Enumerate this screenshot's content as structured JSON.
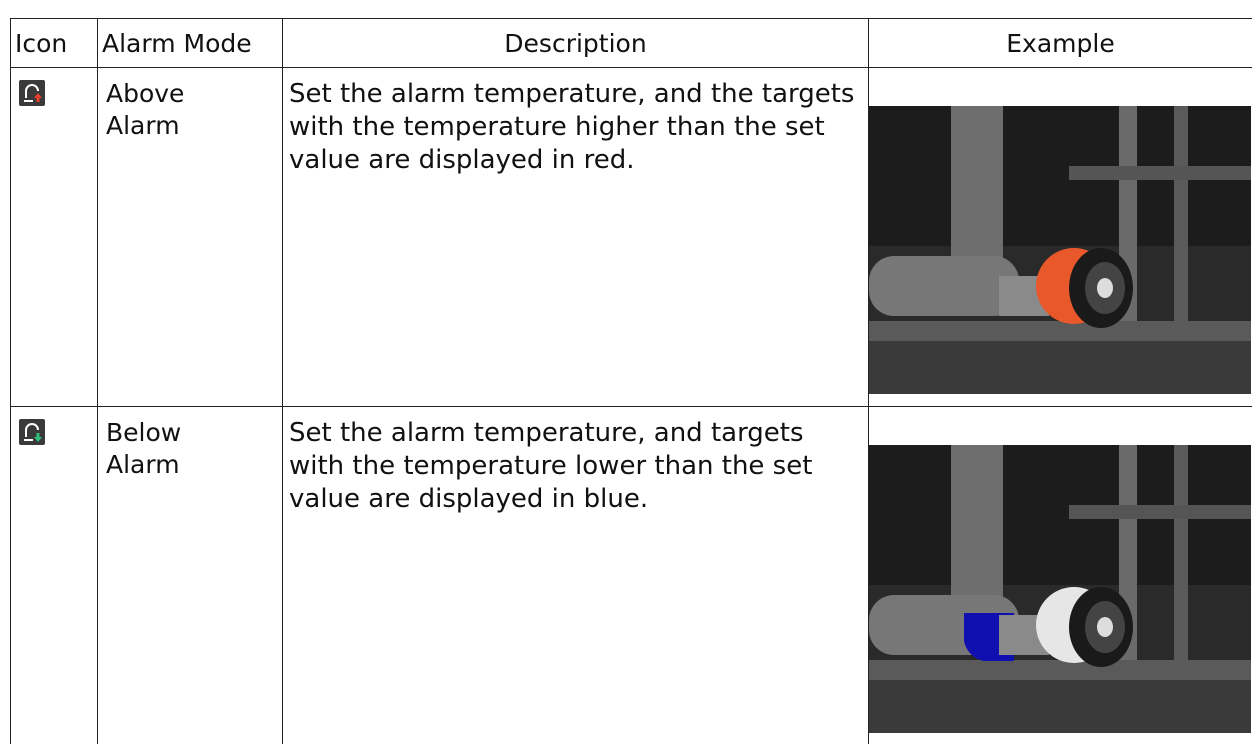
{
  "table": {
    "headers": [
      "Icon",
      "Alarm Mode",
      "Description",
      "Example"
    ],
    "rows": [
      {
        "mode": "Above Alarm",
        "description": "Set the alarm temperature, and the targets with the temperature higher than the set value are displayed in red."
      },
      {
        "mode": "Below Alarm",
        "description": "Set the alarm temperature, and targets with the temperature lower than the set value are displayed in blue."
      }
    ]
  }
}
